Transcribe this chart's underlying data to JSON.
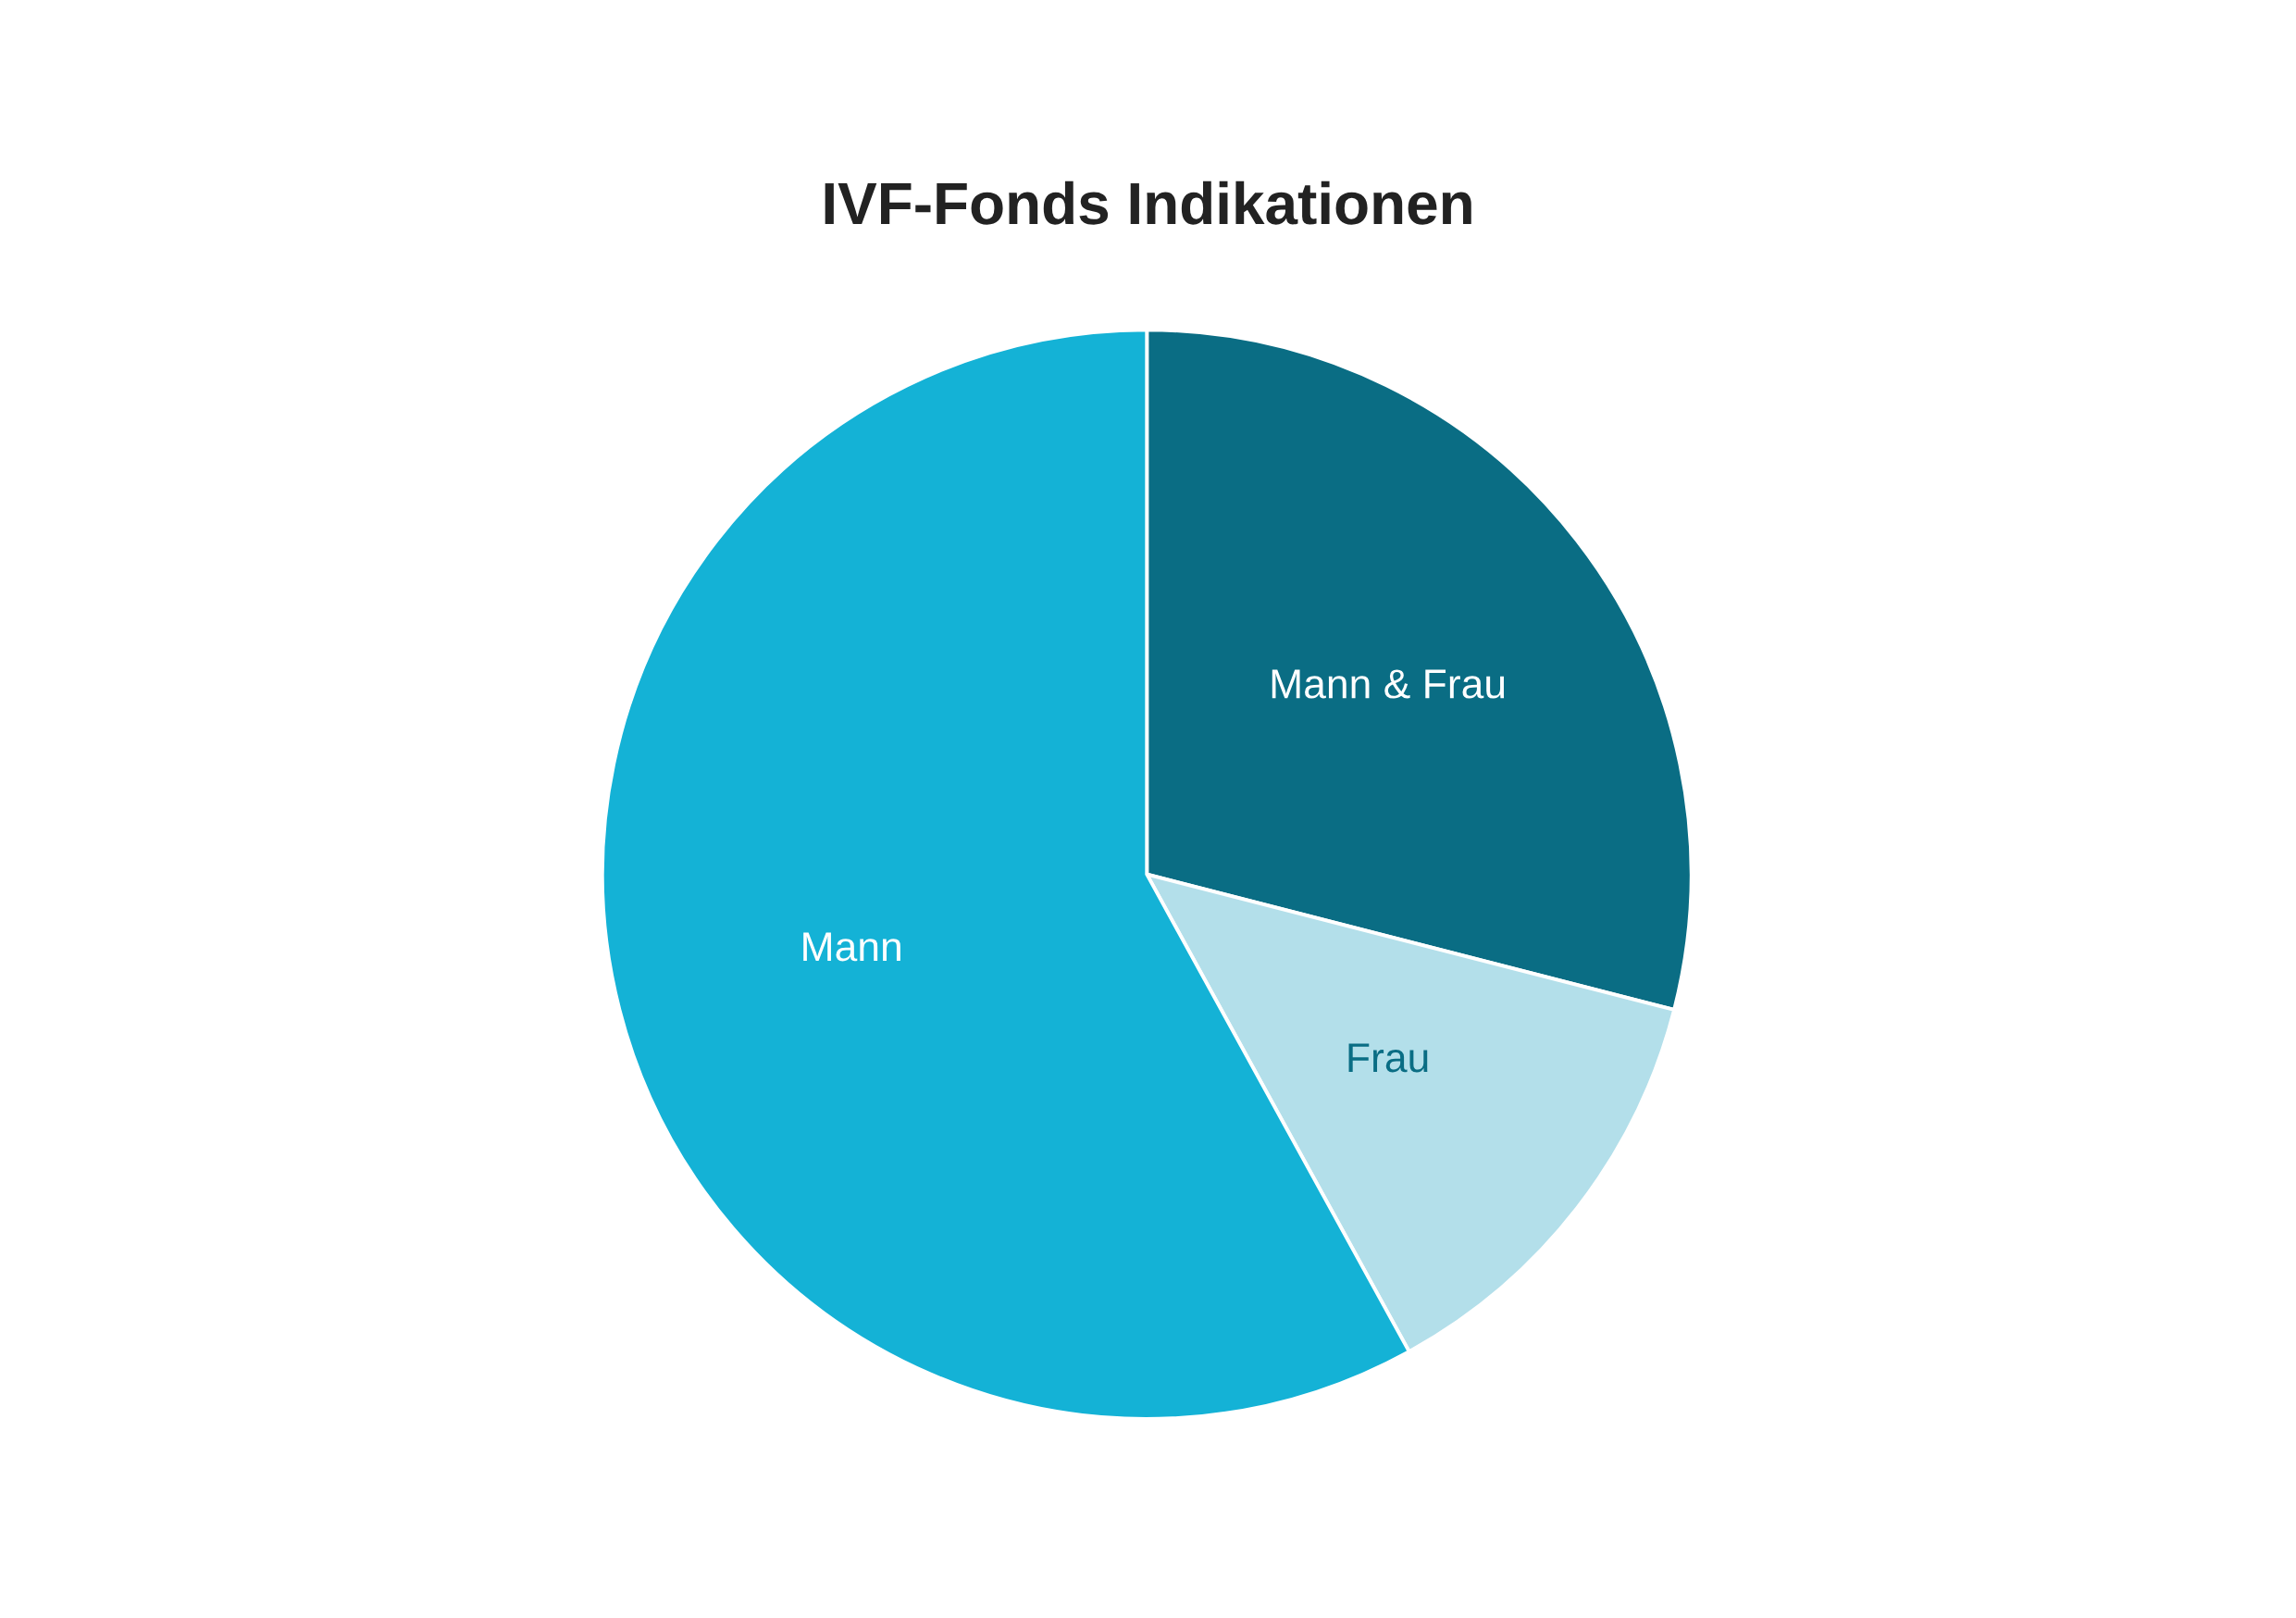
{
  "chart_data": {
    "type": "pie",
    "title": "IVF-Fonds Indikationen",
    "categories": [
      "Mann & Frau",
      "Frau",
      "Mann"
    ],
    "values": [
      29,
      13,
      58
    ],
    "colors": [
      "#0a6d84",
      "#b3dfea",
      "#14b2d6"
    ]
  }
}
